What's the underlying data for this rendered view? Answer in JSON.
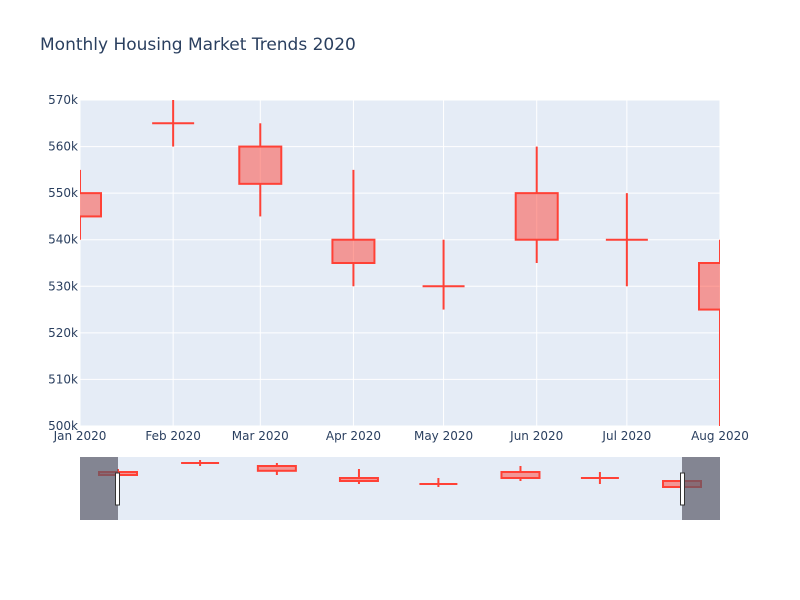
{
  "chart_data": {
    "type": "candlestick",
    "title": "Monthly Housing Market Trends 2020",
    "x_ticks": [
      "Jan 2020",
      "Feb 2020",
      "Mar 2020",
      "Apr 2020",
      "May 2020",
      "Jun 2020",
      "Jul 2020",
      "Aug 2020"
    ],
    "y_ticks": [
      "500k",
      "510k",
      "520k",
      "530k",
      "540k",
      "550k",
      "560k",
      "570k"
    ],
    "ylim": [
      500000,
      570000
    ],
    "xlim": [
      "2020-01-01",
      "2020-08-01"
    ],
    "increasing_color": "#3d9970",
    "decreasing_color": "#ff4136",
    "plot_bg": "#e5ecf6",
    "rangeslider": true,
    "candles": [
      {
        "date": "2020-01-01",
        "open": 550000,
        "high": 555000,
        "low": 540000,
        "close": 545000
      },
      {
        "date": "2020-02-01",
        "open": 565000,
        "high": 570000,
        "low": 560000,
        "close": 565000
      },
      {
        "date": "2020-03-01",
        "open": 560000,
        "high": 565000,
        "low": 545000,
        "close": 552000
      },
      {
        "date": "2020-04-01",
        "open": 540000,
        "high": 555000,
        "low": 530000,
        "close": 535000
      },
      {
        "date": "2020-05-01",
        "open": 530000,
        "high": 540000,
        "low": 525000,
        "close": 530000
      },
      {
        "date": "2020-06-01",
        "open": 550000,
        "high": 560000,
        "low": 535000,
        "close": 540000
      },
      {
        "date": "2020-07-01",
        "open": 540000,
        "high": 550000,
        "low": 530000,
        "close": 540000
      },
      {
        "date": "2020-08-01",
        "open": 535000,
        "high": 540000,
        "low": 500000,
        "close": 525000
      }
    ]
  }
}
